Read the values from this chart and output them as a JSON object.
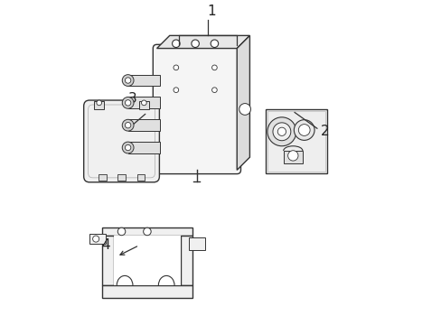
{
  "background_color": "#ffffff",
  "line_color": "#333333",
  "label_color": "#222222",
  "fig_width": 4.89,
  "fig_height": 3.6,
  "dpi": 100,
  "label_fontsize": 11,
  "callout_line_color": "#333333"
}
